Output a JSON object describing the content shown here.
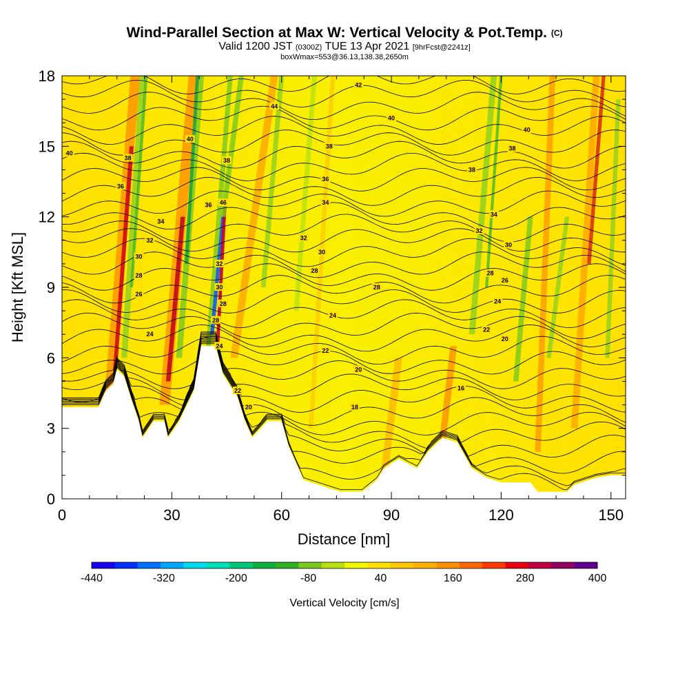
{
  "title": {
    "main": "Wind-Parallel Section at Max W: Vertical Velocity & Pot.Temp.",
    "copyright": "(C)",
    "valid_prefix": "Valid 1200 JST",
    "valid_z": "(0300Z)",
    "valid_date": "TUE 13 Apr 2021",
    "forecast": "[9hrFcst@2241z]",
    "box": "boxWmax=553@36.13,138.38,2650m"
  },
  "chart_data": {
    "type": "heatmap",
    "xlabel": "Distance [nm]",
    "ylabel": "Height [Kft MSL]",
    "xlim": [
      0,
      154
    ],
    "ylim": [
      0,
      18
    ],
    "x_ticks": [
      "0",
      "30",
      "60",
      "90",
      "120",
      "150"
    ],
    "y_ticks": [
      "0",
      "3",
      "6",
      "9",
      "12",
      "15",
      "18"
    ],
    "colorbar": {
      "label": "Vertical Velocity [cm/s]",
      "tick_labels": [
        "-440",
        "-320",
        "-200",
        "-80",
        "40",
        "160",
        "280",
        "400"
      ],
      "colors": [
        "#1800f0",
        "#0030ff",
        "#0070ff",
        "#00a8ff",
        "#00dcee",
        "#00e0b8",
        "#00c878",
        "#10b040",
        "#30b020",
        "#78c820",
        "#b8e010",
        "#f0f800",
        "#ffe000",
        "#ffc800",
        "#ffb000",
        "#ff9000",
        "#ff6800",
        "#ff3800",
        "#e80010",
        "#c00040",
        "#900060",
        "#600090"
      ]
    },
    "terrain_kft": [
      [
        0,
        3.9
      ],
      [
        10,
        3.9
      ],
      [
        12,
        4.6
      ],
      [
        14,
        4.9
      ],
      [
        15,
        5.5
      ],
      [
        17,
        5.2
      ],
      [
        19,
        4.2
      ],
      [
        21,
        3.3
      ],
      [
        22,
        2.6
      ],
      [
        25,
        3.3
      ],
      [
        28,
        3.3
      ],
      [
        29,
        2.6
      ],
      [
        32,
        3.3
      ],
      [
        36,
        4.6
      ],
      [
        38,
        6.5
      ],
      [
        42,
        6.5
      ],
      [
        44,
        5.3
      ],
      [
        48,
        4.3
      ],
      [
        50,
        3.3
      ],
      [
        52,
        2.6
      ],
      [
        56,
        3.3
      ],
      [
        60,
        3.3
      ],
      [
        62,
        2.2
      ],
      [
        66,
        0.8
      ],
      [
        70,
        0.6
      ],
      [
        76,
        0.3
      ],
      [
        82,
        0.3
      ],
      [
        86,
        0.8
      ],
      [
        88,
        1.3
      ],
      [
        92,
        1.7
      ],
      [
        97,
        1.3
      ],
      [
        100,
        2.0
      ],
      [
        104,
        2.6
      ],
      [
        108,
        2.4
      ],
      [
        112,
        1.3
      ],
      [
        116,
        0.9
      ],
      [
        120,
        0.7
      ],
      [
        128,
        0.7
      ],
      [
        130,
        0.3
      ],
      [
        138,
        0.3
      ],
      [
        140,
        0.6
      ],
      [
        146,
        0.9
      ],
      [
        150,
        1.0
      ],
      [
        154,
        1.0
      ]
    ],
    "contour_labels": [
      {
        "x": 81,
        "y": 17.6,
        "text": "42"
      },
      {
        "x": 58,
        "y": 16.7,
        "text": "44"
      },
      {
        "x": 90,
        "y": 16.2,
        "text": "40"
      },
      {
        "x": 127,
        "y": 15.7,
        "text": "40"
      },
      {
        "x": 35,
        "y": 15.3,
        "text": "40"
      },
      {
        "x": 2,
        "y": 14.7,
        "text": "40"
      },
      {
        "x": 73,
        "y": 15.0,
        "text": "38"
      },
      {
        "x": 123,
        "y": 14.9,
        "text": "38"
      },
      {
        "x": 18,
        "y": 14.5,
        "text": "38"
      },
      {
        "x": 45,
        "y": 14.4,
        "text": "38"
      },
      {
        "x": 112,
        "y": 14.0,
        "text": "38"
      },
      {
        "x": 72,
        "y": 13.6,
        "text": "36"
      },
      {
        "x": 16,
        "y": 13.3,
        "text": "36"
      },
      {
        "x": 40,
        "y": 12.5,
        "text": "36"
      },
      {
        "x": 44,
        "y": 12.6,
        "text": "46"
      },
      {
        "x": 72,
        "y": 12.6,
        "text": "34"
      },
      {
        "x": 118,
        "y": 12.1,
        "text": "34"
      },
      {
        "x": 27,
        "y": 11.8,
        "text": "34"
      },
      {
        "x": 114,
        "y": 11.4,
        "text": "32"
      },
      {
        "x": 66,
        "y": 11.1,
        "text": "32"
      },
      {
        "x": 24,
        "y": 11.0,
        "text": "32"
      },
      {
        "x": 122,
        "y": 10.8,
        "text": "30"
      },
      {
        "x": 71,
        "y": 10.5,
        "text": "30"
      },
      {
        "x": 21,
        "y": 10.3,
        "text": "30"
      },
      {
        "x": 43,
        "y": 10.0,
        "text": "32"
      },
      {
        "x": 69,
        "y": 9.7,
        "text": "28"
      },
      {
        "x": 117,
        "y": 9.6,
        "text": "28"
      },
      {
        "x": 21,
        "y": 9.5,
        "text": "28"
      },
      {
        "x": 121,
        "y": 9.3,
        "text": "26"
      },
      {
        "x": 43,
        "y": 9.0,
        "text": "30"
      },
      {
        "x": 86,
        "y": 9.0,
        "text": "28"
      },
      {
        "x": 21,
        "y": 8.7,
        "text": "26"
      },
      {
        "x": 119,
        "y": 8.4,
        "text": "24"
      },
      {
        "x": 44,
        "y": 8.3,
        "text": "28"
      },
      {
        "x": 74,
        "y": 7.8,
        "text": "24"
      },
      {
        "x": 42,
        "y": 7.6,
        "text": "28"
      },
      {
        "x": 116,
        "y": 7.2,
        "text": "22"
      },
      {
        "x": 24,
        "y": 7.0,
        "text": "24"
      },
      {
        "x": 121,
        "y": 6.8,
        "text": "20"
      },
      {
        "x": 43,
        "y": 6.5,
        "text": "24"
      },
      {
        "x": 72,
        "y": 6.3,
        "text": "22"
      },
      {
        "x": 81,
        "y": 5.5,
        "text": "20"
      },
      {
        "x": 109,
        "y": 4.7,
        "text": "16"
      },
      {
        "x": 48,
        "y": 4.6,
        "text": "22"
      },
      {
        "x": 80,
        "y": 3.9,
        "text": "18"
      },
      {
        "x": 51,
        "y": 3.9,
        "text": "20"
      }
    ]
  }
}
